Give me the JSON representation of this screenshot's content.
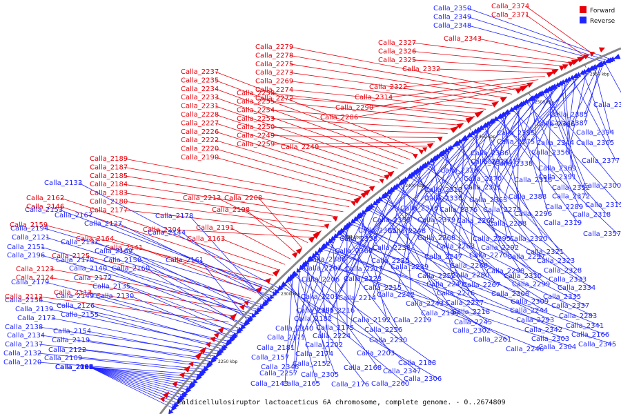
{
  "caption": "Caldicellulosiruptor lactoaceticus 6A chromosome, complete genome. - 0..2674809",
  "legend": [
    {
      "label": "Forward",
      "color": "#e8000b"
    },
    {
      "label": "Reverse",
      "color": "#1f24ff"
    }
  ],
  "colors": {
    "forward": "#e8000b",
    "reverse": "#1f24ff",
    "backbone": "#888888"
  },
  "ticks": [
    "2250 kbp",
    "2300 kbp",
    "2350 kbp",
    "2400 kbp",
    "2450 kbp",
    "2500 kbp",
    "2550 kbp"
  ],
  "forward_labels": [
    "Calla_2374",
    "Calla_2371",
    "Calla_2343",
    "Calla_2327",
    "Calla_2326",
    "Calla_2325",
    "Calla_2332",
    "Calla_2322",
    "Calla_2314",
    "Calla_2290",
    "Calla_2286",
    "Calla_2279",
    "Calla_2278",
    "Calla_2275",
    "Calla_2273",
    "Calla_2269",
    "Calla_2274",
    "Calla_2272",
    "Calla_2258",
    "Calla_2255",
    "Calla_2254",
    "Calla_2253",
    "Calla_2250",
    "Calla_2249",
    "Calla_2259",
    "Calla_2240",
    "Calla_2237",
    "Calla_2235",
    "Calla_2234",
    "Calla_2233",
    "Calla_2231",
    "Calla_2228",
    "Calla_2227",
    "Calla_2226",
    "Calla_2222",
    "Calla_2220",
    "Calla_2190",
    "Calla_2189",
    "Calla_2187",
    "Calla_2185",
    "Calla_2184",
    "Calla_2183",
    "Calla_2180",
    "Calla_2177",
    "Calla_2204",
    "Calla_2213",
    "Calla_2208",
    "Calla_2198",
    "Calla_2191",
    "Calla_2163",
    "Calla_2162",
    "Calla_2146",
    "Calla_2159",
    "Calla_2164",
    "Calla_2141",
    "Calla_2125",
    "Calla_2123",
    "Calla_2124",
    "Calla_2113",
    "Calla_2112"
  ],
  "reverse_labels": [
    "Calla_2350",
    "Calla_2349",
    "Calla_2348",
    "Calla_2399",
    "Calla_2385",
    "Calla_2387",
    "Calla_2366",
    "Calla_2394",
    "Calla_2355",
    "Calla_2375",
    "Calla_2344",
    "Calla_2365",
    "Calla_2386",
    "Calla_2324",
    "Calla_2356",
    "Calla_2377",
    "Calla_2317",
    "Calla_2338",
    "Calla_2369",
    "Calla_2391",
    "Calla_2329",
    "Calla_2370",
    "Calla_2311",
    "Calla_2316",
    "Calla_2352",
    "Calla_2372",
    "Calla_2300",
    "Calla_2312",
    "Calla_2330",
    "Calla_2363",
    "Calla_2388",
    "Calla_2289",
    "Calla_2315",
    "Calla_2336",
    "Calla_2376",
    "Calla_2271",
    "Calla_2296",
    "Calla_2318",
    "Calla_2353",
    "Calla_2379",
    "Calla_2262",
    "Calla_2288",
    "Calla_2319",
    "Calla_2357",
    "Calla_2383",
    "Calla_2248",
    "Calla_2268",
    "Calla_2295",
    "Calla_2320",
    "Calla_2358",
    "Calla_2238",
    "Calla_2263",
    "Calla_2292",
    "Calla_2321",
    "Calla_2360",
    "Calla_2225",
    "Calla_2247",
    "Calla_2270",
    "Calla_2297",
    "Calla_2323",
    "Calla_2380",
    "Calla_2217",
    "Calla_2239",
    "Calla_2266",
    "Calla_2298",
    "Calla_2328",
    "Calla_2207",
    "Calla_2223",
    "Calla_2252",
    "Calla_2280",
    "Calla_2310",
    "Calla_2333",
    "Calla_2206",
    "Calla_2215",
    "Calla_2241",
    "Calla_2267",
    "Calla_2299",
    "Calla_2334",
    "Calla_2201",
    "Calla_2214",
    "Calla_2242",
    "Calla_2276",
    "Calla_2308",
    "Calla_2335",
    "Calla_2195",
    "Calla_2216",
    "Calla_2243",
    "Calla_2277",
    "Calla_2309",
    "Calla_2337",
    "Calla_2182",
    "Calla_2199",
    "Calla_2218",
    "Calla_2244",
    "Calla_2283",
    "Calla_2340",
    "Calla_2175",
    "Calla_2192",
    "Calla_2219",
    "Calla_2245",
    "Calla_2293",
    "Calla_2341",
    "Calla_2171",
    "Calla_2224",
    "Calla_2256",
    "Calla_2302",
    "Calla_2342",
    "Calla_2166",
    "Calla_2181",
    "Calla_2202",
    "Calla_2230",
    "Calla_2261",
    "Calla_2303",
    "Calla_2345",
    "Calla_2157",
    "Calla_2174",
    "Calla_2203",
    "Calla_2246",
    "Calla_2304",
    "Calla_2346",
    "Calla_2152",
    "Calla_2168",
    "Calla_2188",
    "Calla_2257",
    "Calla_2305",
    "Calla_2347",
    "Calla_2143",
    "Calla_2165",
    "Calla_2176",
    "Calla_2260",
    "Calla_2306",
    "Calla_2133",
    "Calla_2153",
    "Calla_2167",
    "Calla_2194",
    "Calla_2127",
    "Calla_2144",
    "Calla_2178",
    "Calla_2121",
    "Calla_2131",
    "Calla_2151",
    "Calla_2169",
    "Calla_2196",
    "Calla_2170",
    "Calla_2150",
    "Calla_2161",
    "Calla_2140",
    "Calla_2160",
    "Calla_2172",
    "Calla_2179",
    "Calla_2135",
    "Calla_2149",
    "Calla_2130",
    "Calla_2156",
    "Calla_2126",
    "Calla_2139",
    "Calla_2155",
    "Calla_2173",
    "Calla_2138",
    "Calla_2154",
    "Calla_2134",
    "Calla_2119",
    "Calla_2137",
    "Calla_2122",
    "Calla_2132",
    "Calla_2109",
    "Calla_2120",
    "Calla_2108",
    "Calla_2118",
    "Calla_2106",
    "Calla_2100",
    "Calla_2107",
    "Calla_2095",
    "Calla_2105",
    "Calla_2091",
    "Calla_2099",
    "Calla_2084",
    "Calla_2094",
    "Calla_2080",
    "Calla_2092"
  ]
}
